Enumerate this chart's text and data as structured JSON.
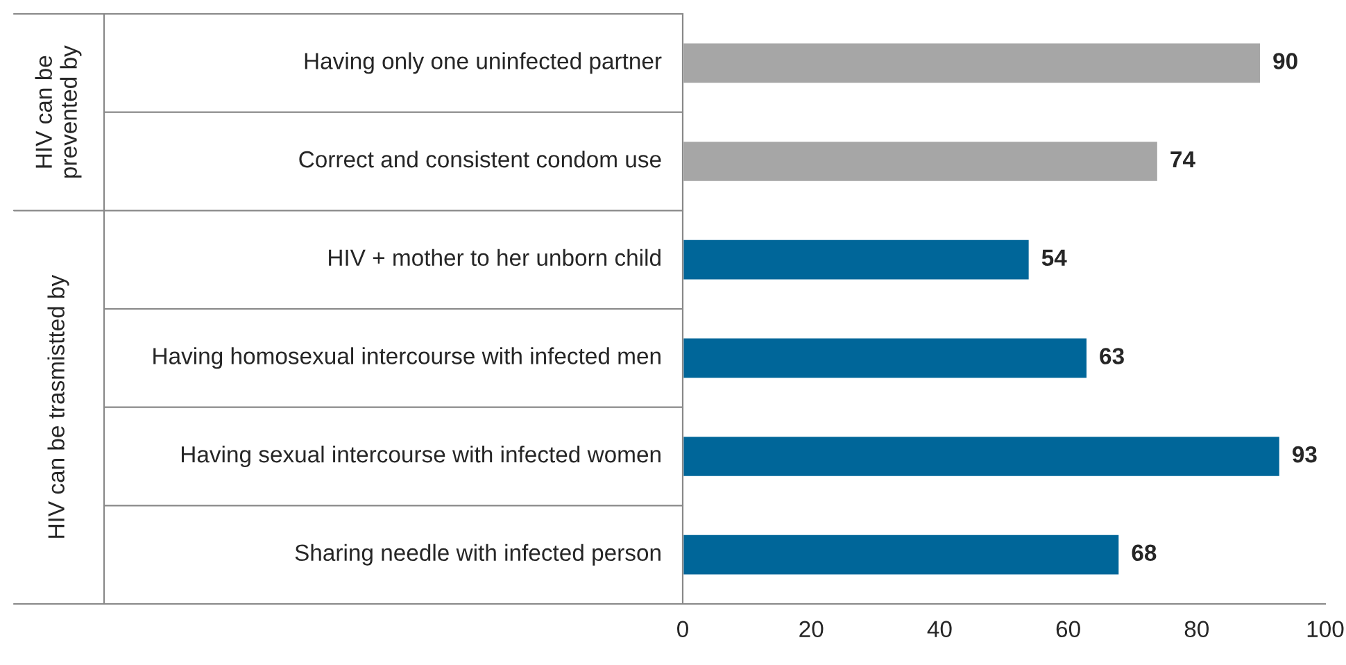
{
  "chart_data": {
    "type": "bar",
    "orientation": "horizontal",
    "categories": [
      "Having only one uninfected partner",
      "Correct and consistent condom use",
      "HIV + mother to her unborn child",
      "Having homosexual intercourse with infected men",
      "Having sexual intercourse with infected women",
      "Sharing needle with infected person"
    ],
    "values": [
      90,
      74,
      54,
      63,
      93,
      68
    ],
    "colors": [
      "#a6a6a6",
      "#a6a6a6",
      "#006699",
      "#006699",
      "#006699",
      "#006699"
    ],
    "xlim": [
      0,
      100
    ],
    "xticks": [
      0,
      20,
      40,
      60,
      80,
      100
    ],
    "data_labels": true,
    "grid": false,
    "annotations": [
      "HIV can be prevented by",
      "HIV can be trasmistted by"
    ]
  }
}
